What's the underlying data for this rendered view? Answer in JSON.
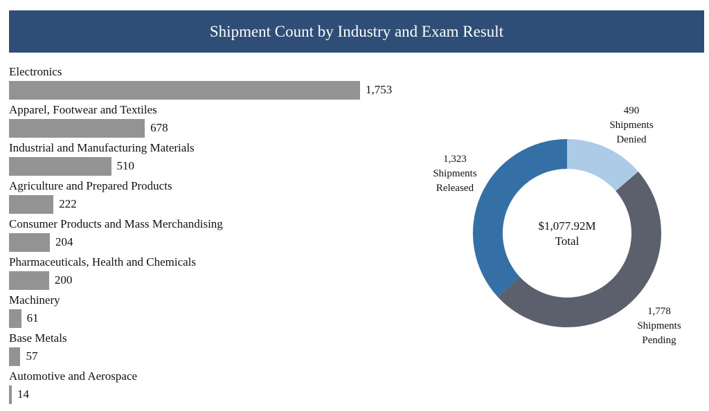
{
  "chart_data": [
    {
      "type": "bar",
      "orientation": "horizontal",
      "title": "Shipment Count by Industry and Exam Result",
      "categories": [
        "Electronics",
        "Apparel, Footwear and Textiles",
        "Industrial and Manufacturing Materials",
        "Agriculture and Prepared Products",
        "Consumer Products and Mass Merchandising",
        "Pharmaceuticals, Health and Chemicals",
        "Machinery",
        "Base Metals",
        "Automotive and Aerospace"
      ],
      "values": [
        1753,
        678,
        510,
        222,
        204,
        200,
        61,
        57,
        14
      ],
      "value_labels": [
        "1,753",
        "678",
        "510",
        "222",
        "204",
        "200",
        "61",
        "57",
        "14"
      ],
      "color": "#939393",
      "grid": false
    },
    {
      "type": "pie",
      "donut": true,
      "slices": [
        {
          "label": "Shipments Denied",
          "value": 490,
          "value_label": "490",
          "color": "#abcbe7"
        },
        {
          "label": "Shipments Pending",
          "value": 1778,
          "value_label": "1,778",
          "color": "#5b606c"
        },
        {
          "label": "Shipments Released",
          "value": 1323,
          "value_label": "1,323",
          "color": "#3470a6"
        }
      ],
      "center_value": "$1,077.92M",
      "center_label": "Total"
    }
  ],
  "header_color": "#2e4d77"
}
